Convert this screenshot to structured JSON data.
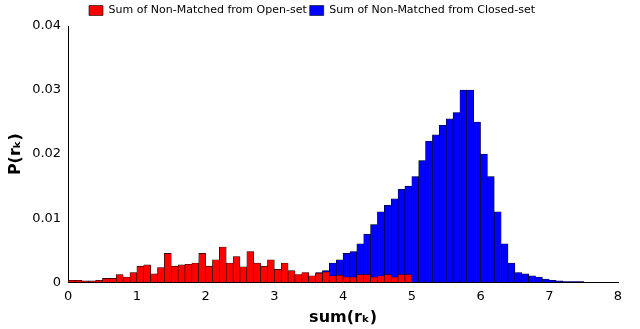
{
  "chart_data": {
    "type": "histogram",
    "x_label": "sum(rₖ)",
    "y_label": "P(rₖ)",
    "bins": [
      0,
      0.1,
      0.2,
      0.3,
      0.4,
      0.5,
      0.6,
      0.7,
      0.8,
      0.9,
      1,
      1.1,
      1.2,
      1.3,
      1.4,
      1.5,
      1.6,
      1.7,
      1.8,
      1.9,
      2,
      2.1,
      2.2,
      2.3,
      2.4,
      2.5,
      2.6,
      2.7,
      2.8,
      2.9,
      3,
      3.1,
      3.2,
      3.3,
      3.4,
      3.5,
      3.6,
      3.7,
      3.8,
      3.9,
      4,
      4.1,
      4.2,
      4.3,
      4.4,
      4.5,
      4.6,
      4.7,
      4.8,
      4.9,
      5,
      5.1,
      5.2,
      5.3,
      5.4,
      5.5,
      5.6,
      5.7,
      5.8,
      5.9,
      6,
      6.1,
      6.2,
      6.3,
      6.4,
      6.5,
      6.6,
      6.7,
      6.8,
      6.9,
      7,
      7.1,
      7.2,
      7.3,
      7.4,
      7.5,
      7.6,
      7.7,
      7.8,
      7.9,
      8
    ],
    "series": [
      {
        "name": "Sum of Non-Matched from Closed-set",
        "color": "#0000ff",
        "values": [
          0,
          0,
          0,
          0,
          0,
          0,
          0,
          0,
          0,
          0,
          0,
          0,
          0,
          0,
          0,
          0,
          0,
          0,
          0,
          0,
          0,
          0,
          0,
          0,
          0,
          0,
          0,
          0,
          0,
          0,
          0,
          0,
          0,
          0.0003,
          0.0004,
          0.0008,
          0.0015,
          0.0018,
          0.003,
          0.0035,
          0.0045,
          0.0048,
          0.006,
          0.0075,
          0.009,
          0.011,
          0.012,
          0.013,
          0.0145,
          0.015,
          0.0165,
          0.019,
          0.022,
          0.023,
          0.0245,
          0.0255,
          0.0265,
          0.03,
          0.03,
          0.025,
          0.02,
          0.0165,
          0.011,
          0.006,
          0.003,
          0.0015,
          0.0013,
          0.001,
          0.0008,
          0.0005,
          0.0003,
          0.0002,
          0.0001,
          0.0001,
          0.0001,
          0,
          0,
          0,
          0,
          0
        ]
      },
      {
        "name": "Sum of Non-Matched from Open-set",
        "color": "#ff0000",
        "values": [
          0.0003,
          0.0003,
          0.0002,
          0.0002,
          0.0003,
          0.0006,
          0.0006,
          0.0012,
          0.0008,
          0.0015,
          0.0025,
          0.0027,
          0.0013,
          0.0023,
          0.0045,
          0.0025,
          0.0027,
          0.0028,
          0.003,
          0.0045,
          0.0025,
          0.0035,
          0.0055,
          0.003,
          0.004,
          0.0024,
          0.0048,
          0.003,
          0.0025,
          0.0035,
          0.002,
          0.003,
          0.0018,
          0.0012,
          0.0015,
          0.001,
          0.0014,
          0.0016,
          0.001,
          0.0011,
          0.0008,
          0.0008,
          0.0012,
          0.0012,
          0.0008,
          0.001,
          0.0012,
          0.0008,
          0.0012,
          0.0012,
          0,
          0,
          0,
          0,
          0,
          0,
          0,
          0,
          0,
          0,
          0,
          0,
          0,
          0,
          0,
          0,
          0,
          0,
          0,
          0,
          0,
          0,
          0,
          0,
          0,
          0,
          0,
          0,
          0,
          0
        ]
      }
    ],
    "xlim": [
      0,
      8
    ],
    "xticks": [
      0,
      1,
      2,
      3,
      4,
      5,
      6,
      7,
      8
    ],
    "ylim": [
      0,
      0.04
    ],
    "yticks": [
      0,
      0.01,
      0.02,
      0.03,
      0.04
    ],
    "grid": false,
    "legend": "top"
  }
}
